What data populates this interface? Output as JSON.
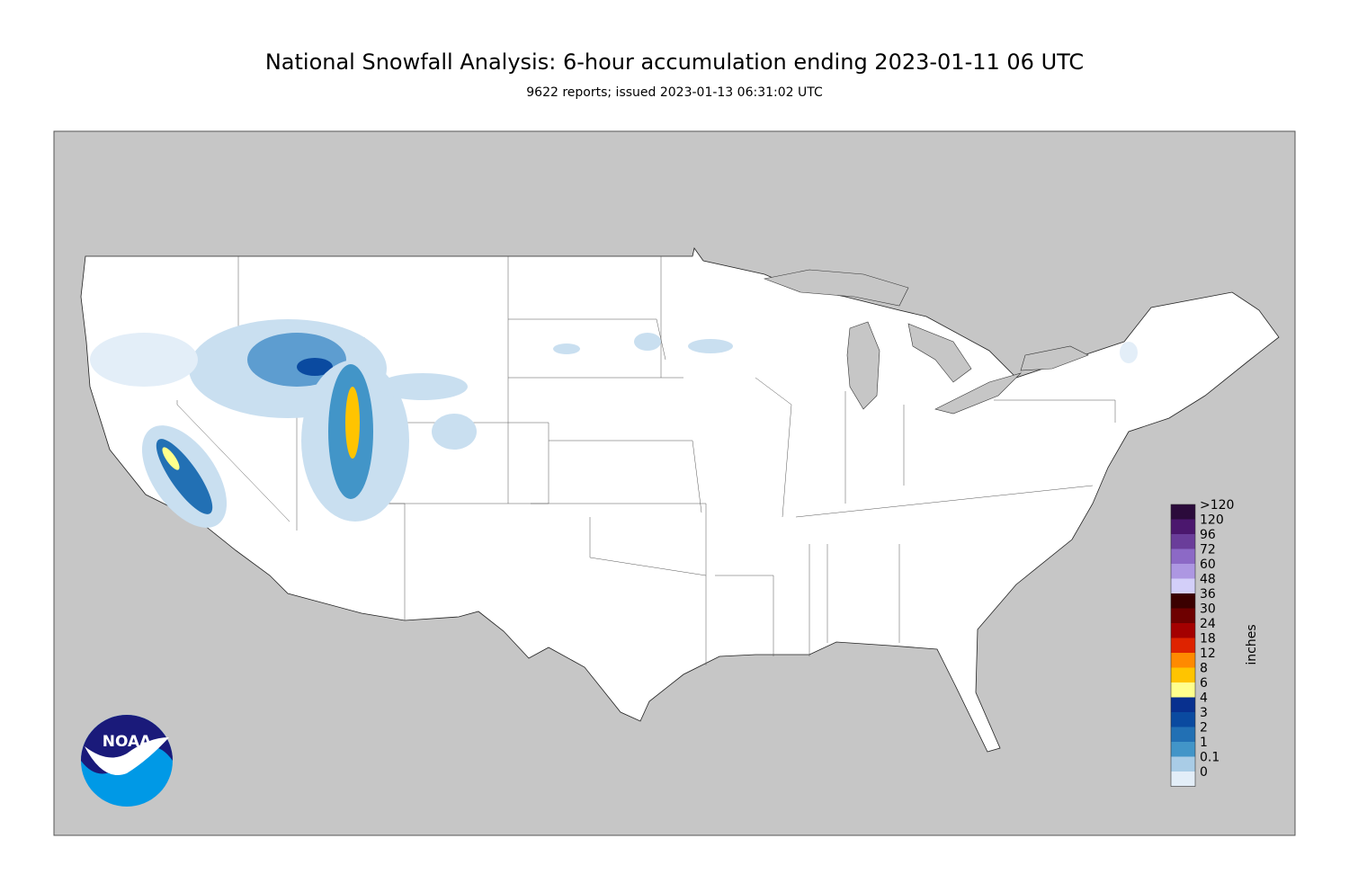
{
  "header": {
    "title": "National Snowfall Analysis: 6-hour accumulation ending 2023-01-11 06 UTC",
    "subtitle": "9622 reports; issued 2023-01-13 06:31:02 UTC"
  },
  "legend": {
    "unit": "inches",
    "levels": [
      {
        "label": ">120",
        "color": "#2b0b3b"
      },
      {
        "label": "120",
        "color": "#4b176e"
      },
      {
        "label": "96",
        "color": "#6a3d9a"
      },
      {
        "label": "72",
        "color": "#8c69c6"
      },
      {
        "label": "60",
        "color": "#ad97e2"
      },
      {
        "label": "48",
        "color": "#d3cff9"
      },
      {
        "label": "36",
        "color": "#3b0000"
      },
      {
        "label": "30",
        "color": "#6e0000"
      },
      {
        "label": "24",
        "color": "#a40000"
      },
      {
        "label": "18",
        "color": "#de2300"
      },
      {
        "label": "12",
        "color": "#ff8a00"
      },
      {
        "label": "8",
        "color": "#ffc400"
      },
      {
        "label": "6",
        "color": "#ffff8c"
      },
      {
        "label": "4",
        "color": "#08308f"
      },
      {
        "label": "3",
        "color": "#0a4aa0"
      },
      {
        "label": "2",
        "color": "#2270b4"
      },
      {
        "label": "1",
        "color": "#4295c8"
      },
      {
        "label": "0.1",
        "color": "#a9cce6"
      },
      {
        "label": "0",
        "color": "#e3eef8"
      }
    ]
  },
  "logo": {
    "text": "NOAA"
  }
}
